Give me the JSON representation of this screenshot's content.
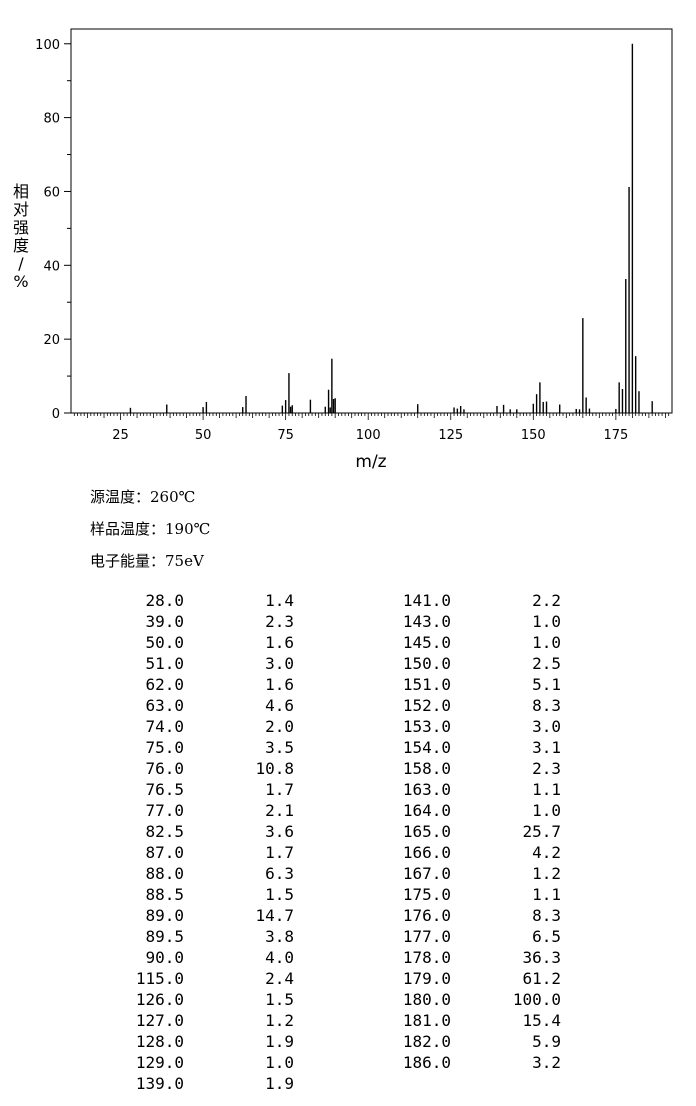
{
  "chart_data": {
    "type": "bar",
    "xlabel": "m/z",
    "ylabel": "相对强度/%",
    "xlim": [
      10,
      192
    ],
    "ylim": [
      0,
      104
    ],
    "xticks": [
      25,
      50,
      75,
      100,
      125,
      150,
      175
    ],
    "yticks": [
      0,
      20,
      40,
      60,
      80,
      100
    ],
    "grid": false,
    "peaks": [
      {
        "mz": 28.0,
        "rel": 1.4
      },
      {
        "mz": 39.0,
        "rel": 2.3
      },
      {
        "mz": 50.0,
        "rel": 1.6
      },
      {
        "mz": 51.0,
        "rel": 3.0
      },
      {
        "mz": 62.0,
        "rel": 1.6
      },
      {
        "mz": 63.0,
        "rel": 4.6
      },
      {
        "mz": 74.0,
        "rel": 2.0
      },
      {
        "mz": 75.0,
        "rel": 3.5
      },
      {
        "mz": 76.0,
        "rel": 10.8
      },
      {
        "mz": 76.5,
        "rel": 1.7
      },
      {
        "mz": 77.0,
        "rel": 2.1
      },
      {
        "mz": 82.5,
        "rel": 3.6
      },
      {
        "mz": 87.0,
        "rel": 1.7
      },
      {
        "mz": 88.0,
        "rel": 6.3
      },
      {
        "mz": 88.5,
        "rel": 1.5
      },
      {
        "mz": 89.0,
        "rel": 14.7
      },
      {
        "mz": 89.5,
        "rel": 3.8
      },
      {
        "mz": 90.0,
        "rel": 4.0
      },
      {
        "mz": 115.0,
        "rel": 2.4
      },
      {
        "mz": 126.0,
        "rel": 1.5
      },
      {
        "mz": 127.0,
        "rel": 1.2
      },
      {
        "mz": 128.0,
        "rel": 1.9
      },
      {
        "mz": 129.0,
        "rel": 1.0
      },
      {
        "mz": 139.0,
        "rel": 1.9
      },
      {
        "mz": 141.0,
        "rel": 2.2
      },
      {
        "mz": 143.0,
        "rel": 1.0
      },
      {
        "mz": 145.0,
        "rel": 1.0
      },
      {
        "mz": 150.0,
        "rel": 2.5
      },
      {
        "mz": 151.0,
        "rel": 5.1
      },
      {
        "mz": 152.0,
        "rel": 8.3
      },
      {
        "mz": 153.0,
        "rel": 3.0
      },
      {
        "mz": 154.0,
        "rel": 3.1
      },
      {
        "mz": 158.0,
        "rel": 2.3
      },
      {
        "mz": 163.0,
        "rel": 1.1
      },
      {
        "mz": 164.0,
        "rel": 1.0
      },
      {
        "mz": 165.0,
        "rel": 25.7
      },
      {
        "mz": 166.0,
        "rel": 4.2
      },
      {
        "mz": 167.0,
        "rel": 1.2
      },
      {
        "mz": 175.0,
        "rel": 1.1
      },
      {
        "mz": 176.0,
        "rel": 8.3
      },
      {
        "mz": 177.0,
        "rel": 6.5
      },
      {
        "mz": 178.0,
        "rel": 36.3
      },
      {
        "mz": 179.0,
        "rel": 61.2
      },
      {
        "mz": 180.0,
        "rel": 100.0
      },
      {
        "mz": 181.0,
        "rel": 15.4
      },
      {
        "mz": 182.0,
        "rel": 5.9
      },
      {
        "mz": 186.0,
        "rel": 3.2
      }
    ]
  },
  "conditions": {
    "source_temp": "源温度：260℃",
    "sample_temp": "样品温度：190℃",
    "electron_energy": "电子能量：75eV"
  },
  "peak_table": {
    "left": [
      [
        "28.0",
        "1.4"
      ],
      [
        "39.0",
        "2.3"
      ],
      [
        "50.0",
        "1.6"
      ],
      [
        "51.0",
        "3.0"
      ],
      [
        "62.0",
        "1.6"
      ],
      [
        "63.0",
        "4.6"
      ],
      [
        "74.0",
        "2.0"
      ],
      [
        "75.0",
        "3.5"
      ],
      [
        "76.0",
        "10.8"
      ],
      [
        "76.5",
        "1.7"
      ],
      [
        "77.0",
        "2.1"
      ],
      [
        "82.5",
        "3.6"
      ],
      [
        "87.0",
        "1.7"
      ],
      [
        "88.0",
        "6.3"
      ],
      [
        "88.5",
        "1.5"
      ],
      [
        "89.0",
        "14.7"
      ],
      [
        "89.5",
        "3.8"
      ],
      [
        "90.0",
        "4.0"
      ],
      [
        "115.0",
        "2.4"
      ],
      [
        "126.0",
        "1.5"
      ],
      [
        "127.0",
        "1.2"
      ],
      [
        "128.0",
        "1.9"
      ],
      [
        "129.0",
        "1.0"
      ],
      [
        "139.0",
        "1.9"
      ]
    ],
    "right": [
      [
        "141.0",
        "2.2"
      ],
      [
        "143.0",
        "1.0"
      ],
      [
        "145.0",
        "1.0"
      ],
      [
        "150.0",
        "2.5"
      ],
      [
        "151.0",
        "5.1"
      ],
      [
        "152.0",
        "8.3"
      ],
      [
        "153.0",
        "3.0"
      ],
      [
        "154.0",
        "3.1"
      ],
      [
        "158.0",
        "2.3"
      ],
      [
        "163.0",
        "1.1"
      ],
      [
        "164.0",
        "1.0"
      ],
      [
        "165.0",
        "25.7"
      ],
      [
        "166.0",
        "4.2"
      ],
      [
        "167.0",
        "1.2"
      ],
      [
        "175.0",
        "1.1"
      ],
      [
        "176.0",
        "8.3"
      ],
      [
        "177.0",
        "6.5"
      ],
      [
        "178.0",
        "36.3"
      ],
      [
        "179.0",
        "61.2"
      ],
      [
        "180.0",
        "100.0"
      ],
      [
        "181.0",
        "15.4"
      ],
      [
        "182.0",
        "5.9"
      ],
      [
        "186.0",
        "3.2"
      ]
    ]
  }
}
